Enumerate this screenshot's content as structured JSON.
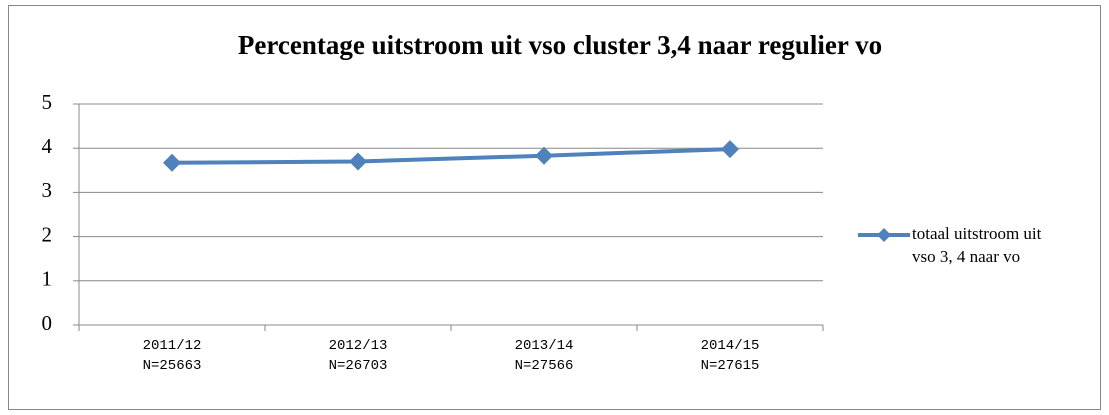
{
  "chart_data": {
    "type": "line",
    "title": "Percentage uitstroom uit vso cluster 3,4 naar regulier vo",
    "categories": [
      "2011/12\nN=25663",
      "2012/13\nN=26703",
      "2013/14\nN=27566",
      "2014/15\nN=27615"
    ],
    "series": [
      {
        "name": "totaal uitstroom uit vso 3, 4 naar vo",
        "color": "#4f81bd",
        "values": [
          3.67,
          3.7,
          3.83,
          3.98
        ]
      }
    ],
    "ylim": [
      0,
      5
    ],
    "yticks": [
      0,
      1,
      2,
      3,
      4,
      5
    ],
    "grid": true,
    "legend": "right"
  }
}
